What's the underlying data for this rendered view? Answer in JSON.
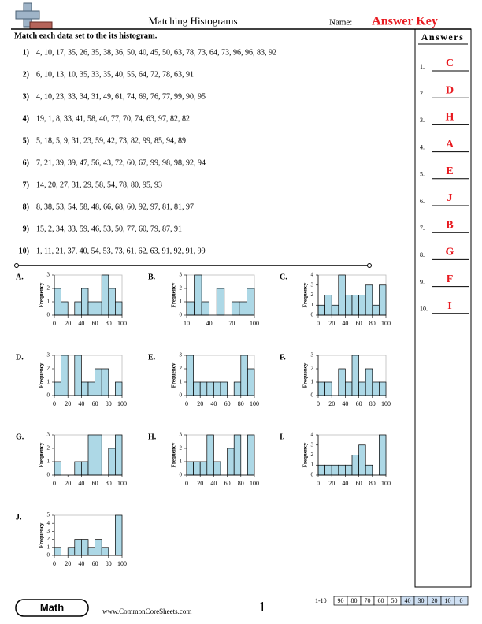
{
  "header": {
    "title": "Matching Histograms",
    "name_label": "Name:",
    "answer_key": "Answer Key"
  },
  "instructions": "Match each data set to the its histogram.",
  "problems": [
    {
      "number": "1)",
      "data": "4, 10, 17, 35, 26, 35, 38, 36, 50, 40, 45, 50, 63, 78, 73, 64, 73, 96, 96, 83, 92"
    },
    {
      "number": "2)",
      "data": "6, 10, 13, 10, 35, 33, 35, 40, 55, 64, 72, 78, 63, 91"
    },
    {
      "number": "3)",
      "data": "4, 10, 23, 33, 34, 31, 49, 61, 74, 69, 76, 77, 99, 90, 95"
    },
    {
      "number": "4)",
      "data": "19, 1, 8, 33, 41, 58, 40, 77, 70, 74, 63, 97, 82, 82"
    },
    {
      "number": "5)",
      "data": "5, 18, 5, 9, 31, 23, 59, 42, 73, 82, 99, 85, 94, 89"
    },
    {
      "number": "6)",
      "data": "7, 21, 39, 39, 47, 56, 43, 72, 60, 67, 99, 98, 98, 92, 94"
    },
    {
      "number": "7)",
      "data": "14, 20, 27, 31, 29, 58, 54, 78, 80, 95, 93"
    },
    {
      "number": "8)",
      "data": "8, 38, 53, 54, 58, 48, 66, 68, 60, 92, 97, 81, 81, 97"
    },
    {
      "number": "9)",
      "data": "15, 2, 34, 33, 59, 46, 53, 50, 77, 60, 79, 87, 91"
    },
    {
      "number": "10)",
      "data": "1, 11, 21, 37, 40, 54, 53, 73, 61, 62, 63, 91, 92, 91, 99"
    }
  ],
  "answers": {
    "title": "Answers",
    "items": [
      {
        "number": "1.",
        "answer": "C"
      },
      {
        "number": "2.",
        "answer": "D"
      },
      {
        "number": "3.",
        "answer": "H"
      },
      {
        "number": "4.",
        "answer": "A"
      },
      {
        "number": "5.",
        "answer": "E"
      },
      {
        "number": "6.",
        "answer": "J"
      },
      {
        "number": "7.",
        "answer": "B"
      },
      {
        "number": "8.",
        "answer": "G"
      },
      {
        "number": "9.",
        "answer": "F"
      },
      {
        "number": "10.",
        "answer": "I"
      }
    ]
  },
  "histograms": [
    {
      "label": "A.",
      "y_label": "Frequency",
      "bins": [
        0,
        10,
        20,
        30,
        40,
        50,
        60,
        70,
        80,
        90,
        100
      ],
      "counts": [
        2,
        1,
        0,
        1,
        2,
        1,
        1,
        3,
        2,
        1
      ],
      "ylim": [
        0,
        3
      ],
      "yticks": [
        0,
        1,
        2,
        3
      ],
      "xticks": [
        0,
        20,
        40,
        60,
        80,
        100
      ]
    },
    {
      "label": "B.",
      "y_label": "Frequency",
      "bins": [
        10,
        20,
        30,
        40,
        50,
        60,
        70,
        80,
        90,
        100
      ],
      "counts": [
        1,
        3,
        1,
        0,
        2,
        0,
        1,
        1,
        2
      ],
      "ylim": [
        0,
        3
      ],
      "yticks": [
        0,
        1,
        2,
        3
      ],
      "xticks": [
        10,
        40,
        70,
        100
      ]
    },
    {
      "label": "C.",
      "y_label": "Frequency",
      "bins": [
        0,
        10,
        20,
        30,
        40,
        50,
        60,
        70,
        80,
        90,
        100
      ],
      "counts": [
        1,
        2,
        1,
        4,
        2,
        2,
        2,
        3,
        1,
        3
      ],
      "ylim": [
        0,
        4
      ],
      "yticks": [
        0,
        1,
        2,
        3,
        4
      ],
      "xticks": [
        0,
        20,
        40,
        60,
        80,
        100
      ]
    },
    {
      "label": "D.",
      "y_label": "Frequency",
      "bins": [
        0,
        10,
        20,
        30,
        40,
        50,
        60,
        70,
        80,
        90,
        100
      ],
      "counts": [
        1,
        3,
        0,
        3,
        1,
        1,
        2,
        2,
        0,
        1
      ],
      "ylim": [
        0,
        3
      ],
      "yticks": [
        0,
        1,
        2,
        3
      ],
      "xticks": [
        0,
        20,
        40,
        60,
        80,
        100
      ]
    },
    {
      "label": "E.",
      "y_label": "Frequency",
      "bins": [
        0,
        10,
        20,
        30,
        40,
        50,
        60,
        70,
        80,
        90,
        100
      ],
      "counts": [
        3,
        1,
        1,
        1,
        1,
        1,
        0,
        1,
        3,
        2
      ],
      "ylim": [
        0,
        3
      ],
      "yticks": [
        0,
        1,
        2,
        3
      ],
      "xticks": [
        0,
        20,
        40,
        60,
        80,
        100
      ]
    },
    {
      "label": "F.",
      "y_label": "Frequency",
      "bins": [
        0,
        10,
        20,
        30,
        40,
        50,
        60,
        70,
        80,
        90,
        100
      ],
      "counts": [
        1,
        1,
        0,
        2,
        1,
        3,
        1,
        2,
        1,
        1
      ],
      "ylim": [
        0,
        3
      ],
      "yticks": [
        0,
        1,
        2,
        3
      ],
      "xticks": [
        0,
        20,
        40,
        60,
        80,
        100
      ]
    },
    {
      "label": "G.",
      "y_label": "Frequency",
      "bins": [
        0,
        10,
        20,
        30,
        40,
        50,
        60,
        70,
        80,
        90,
        100
      ],
      "counts": [
        1,
        0,
        0,
        1,
        1,
        3,
        3,
        0,
        2,
        3
      ],
      "ylim": [
        0,
        3
      ],
      "yticks": [
        0,
        1,
        2,
        3
      ],
      "xticks": [
        0,
        20,
        40,
        60,
        80,
        100
      ]
    },
    {
      "label": "H.",
      "y_label": "Frequency",
      "bins": [
        0,
        10,
        20,
        30,
        40,
        50,
        60,
        70,
        80,
        90,
        100
      ],
      "counts": [
        1,
        1,
        1,
        3,
        1,
        0,
        2,
        3,
        0,
        3
      ],
      "ylim": [
        0,
        3
      ],
      "yticks": [
        0,
        1,
        2,
        3
      ],
      "xticks": [
        0,
        20,
        40,
        60,
        80,
        100
      ]
    },
    {
      "label": "I.",
      "y_label": "Frequency",
      "bins": [
        0,
        10,
        20,
        30,
        40,
        50,
        60,
        70,
        80,
        90,
        100
      ],
      "counts": [
        1,
        1,
        1,
        1,
        1,
        2,
        3,
        1,
        0,
        4
      ],
      "ylim": [
        0,
        4
      ],
      "yticks": [
        0,
        1,
        2,
        3,
        4
      ],
      "xticks": [
        0,
        20,
        40,
        60,
        80,
        100
      ]
    },
    {
      "label": "J.",
      "y_label": "Frequency",
      "bins": [
        0,
        10,
        20,
        30,
        40,
        50,
        60,
        70,
        80,
        90,
        100
      ],
      "counts": [
        1,
        0,
        1,
        2,
        2,
        1,
        2,
        1,
        0,
        5
      ],
      "ylim": [
        0,
        5
      ],
      "yticks": [
        0,
        1,
        2,
        3,
        4,
        5
      ],
      "xticks": [
        0,
        20,
        40,
        60,
        80,
        100
      ]
    }
  ],
  "footer": {
    "subject": "Math",
    "website": "www.CommonCoreSheets.com",
    "page": "1",
    "score_label": "1-10",
    "scores": [
      "90",
      "80",
      "70",
      "60",
      "50",
      "40",
      "30",
      "20",
      "10",
      "0"
    ]
  }
}
